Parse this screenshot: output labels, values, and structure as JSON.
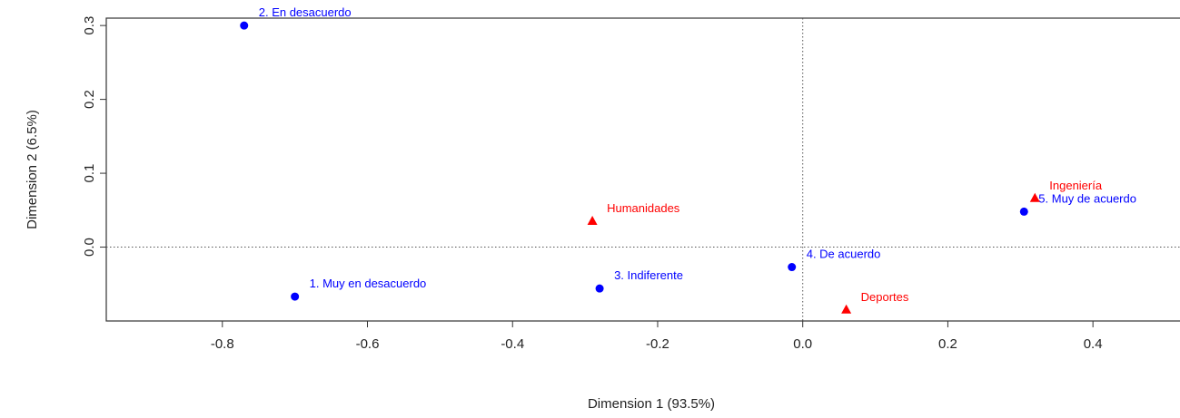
{
  "chart_data": {
    "type": "scatter",
    "title": "",
    "xlabel": "Dimension 1 (93.5%)",
    "ylabel": "Dimension 2 (6.5%)",
    "xlim": [
      -0.96,
      0.52
    ],
    "ylim": [
      -0.1,
      0.31
    ],
    "xticks": [
      -0.8,
      -0.6,
      -0.4,
      -0.2,
      0.0,
      0.2,
      0.4
    ],
    "xtick_labels": [
      "-0.8",
      "-0.6",
      "-0.4",
      "-0.2",
      "0.0",
      "0.2",
      "0.4"
    ],
    "yticks": [
      0.0,
      0.1,
      0.2,
      0.3
    ],
    "ytick_labels": [
      "0.0",
      "0.1",
      "0.2",
      "0.3"
    ],
    "reference_lines": {
      "x": 0,
      "y": 0
    },
    "series": [
      {
        "marker": "circle",
        "color": "#0000ff",
        "points": [
          {
            "label": "1. Muy en desacuerdo",
            "x": -0.7,
            "y": -0.067
          },
          {
            "label": "2. En desacuerdo",
            "x": -0.77,
            "y": 0.3
          },
          {
            "label": "3. Indiferente",
            "x": -0.28,
            "y": -0.056
          },
          {
            "label": "4. De acuerdo",
            "x": -0.015,
            "y": -0.027
          },
          {
            "label": "5. Muy de acuerdo",
            "x": 0.305,
            "y": 0.048
          }
        ]
      },
      {
        "marker": "triangle",
        "color": "#ff0000",
        "points": [
          {
            "label": "Humanidades",
            "x": -0.29,
            "y": 0.035
          },
          {
            "label": "Ingeniería",
            "x": 0.32,
            "y": 0.066
          },
          {
            "label": "Deportes",
            "x": 0.06,
            "y": -0.085
          }
        ]
      }
    ]
  }
}
